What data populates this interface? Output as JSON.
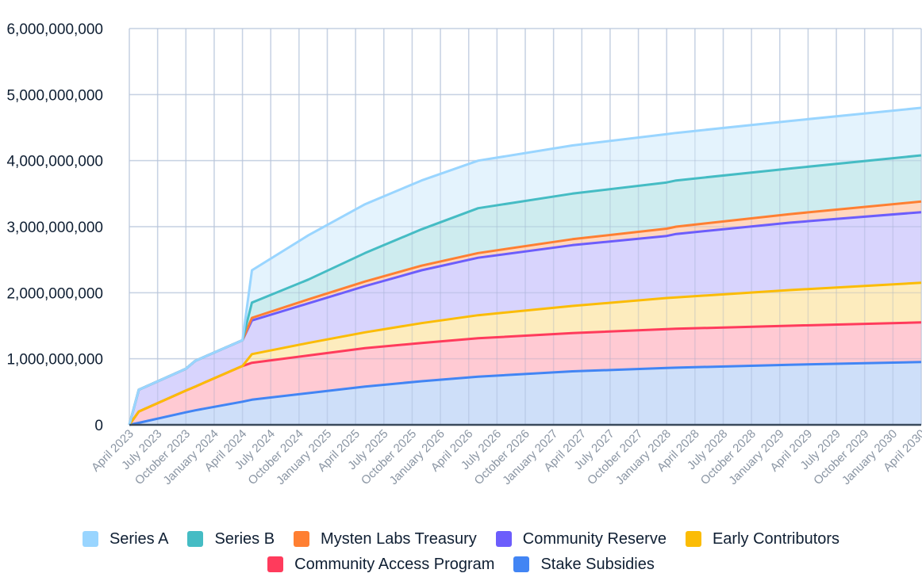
{
  "chart_data": {
    "type": "area",
    "stacked": true,
    "title": "",
    "xlabel": "",
    "ylabel": "",
    "ylim": [
      0,
      6000000000
    ],
    "yticks": [
      0,
      1000000000,
      2000000000,
      3000000000,
      4000000000,
      5000000000,
      6000000000
    ],
    "ytick_labels": [
      "0",
      "1,000,000,000",
      "2,000,000,000",
      "3,000,000,000",
      "4,000,000,000",
      "5,000,000,000",
      "6,000,000,000"
    ],
    "x_unit": "months since April 2023",
    "xlim": [
      0,
      84
    ],
    "xtick_labels": [
      "April 2023",
      "July 2023",
      "October 2023",
      "January 2024",
      "April 2024",
      "July 2024",
      "October 2024",
      "January 2025",
      "April 2025",
      "July 2025",
      "October 2025",
      "January 2026",
      "April 2026",
      "July 2026",
      "October 2026",
      "January 2027",
      "April 2027",
      "July 2027",
      "October 2027",
      "January 2028",
      "April 2028",
      "July 2028",
      "October 2028",
      "January 2029",
      "April 2029",
      "July 2029",
      "October 2029",
      "January 2030",
      "April 2030"
    ],
    "grid": true,
    "legend_position": "bottom",
    "x": [
      0,
      1,
      6,
      7,
      12,
      13,
      19,
      25,
      31,
      37,
      47,
      57,
      58,
      70,
      84
    ],
    "series_cumulative_top_note": "values are stacked cumulative totals (top edge of each band)",
    "series": [
      {
        "name": "Series A",
        "color": "#99d5ff",
        "fill": "#dff1fd",
        "values": [
          0,
          530000000,
          850000000,
          970000000,
          1280000000,
          2340000000,
          2870000000,
          3340000000,
          3700000000,
          4000000000,
          4230000000,
          4400000000,
          4420000000,
          4600000000,
          4800000000
        ]
      },
      {
        "name": "Series B",
        "color": "#45bcc4",
        "fill": "#c6e9ec",
        "values": [
          0,
          530000000,
          850000000,
          970000000,
          1280000000,
          1850000000,
          2200000000,
          2600000000,
          2960000000,
          3280000000,
          3500000000,
          3670000000,
          3700000000,
          3880000000,
          4080000000
        ]
      },
      {
        "name": "Mysten Labs Treasury",
        "color": "#ff7f32",
        "fill": "#ffd0b5",
        "values": [
          0,
          530000000,
          850000000,
          970000000,
          1280000000,
          1620000000,
          1900000000,
          2170000000,
          2410000000,
          2600000000,
          2810000000,
          2970000000,
          3000000000,
          3190000000,
          3380000000
        ]
      },
      {
        "name": "Community Reserve",
        "color": "#6c5dfc",
        "fill": "#d1cdfd",
        "values": [
          0,
          530000000,
          850000000,
          970000000,
          1280000000,
          1580000000,
          1840000000,
          2100000000,
          2340000000,
          2530000000,
          2720000000,
          2860000000,
          2890000000,
          3060000000,
          3220000000
        ]
      },
      {
        "name": "Early Contributors",
        "color": "#fbbc05",
        "fill": "#fde9b3",
        "values": [
          0,
          200000000,
          520000000,
          580000000,
          890000000,
          1070000000,
          1240000000,
          1400000000,
          1540000000,
          1660000000,
          1800000000,
          1920000000,
          1930000000,
          2040000000,
          2150000000
        ]
      },
      {
        "name": "Community Access Program",
        "color": "#ff3b5c",
        "fill": "#ffc1cb",
        "values": [
          0,
          200000000,
          520000000,
          580000000,
          890000000,
          940000000,
          1050000000,
          1160000000,
          1240000000,
          1310000000,
          1390000000,
          1450000000,
          1455000000,
          1500000000,
          1550000000
        ]
      },
      {
        "name": "Stake Subsidies",
        "color": "#4285f4",
        "fill": "#c5d9f8",
        "values": [
          0,
          30000000,
          190000000,
          220000000,
          350000000,
          380000000,
          480000000,
          580000000,
          660000000,
          730000000,
          810000000,
          860000000,
          865000000,
          910000000,
          950000000
        ]
      }
    ]
  },
  "legend": {
    "row1": [
      {
        "label": "Series A",
        "color": "#99d5ff"
      },
      {
        "label": "Series B",
        "color": "#45bcc4"
      },
      {
        "label": "Mysten Labs Treasury",
        "color": "#ff7f32"
      },
      {
        "label": "Community Reserve",
        "color": "#6c5dfc"
      },
      {
        "label": "Early Contributors",
        "color": "#fbbc05"
      }
    ],
    "row2": [
      {
        "label": "Community Access Program",
        "color": "#ff3b5c"
      },
      {
        "label": "Stake Subsidies",
        "color": "#4285f4"
      }
    ]
  }
}
